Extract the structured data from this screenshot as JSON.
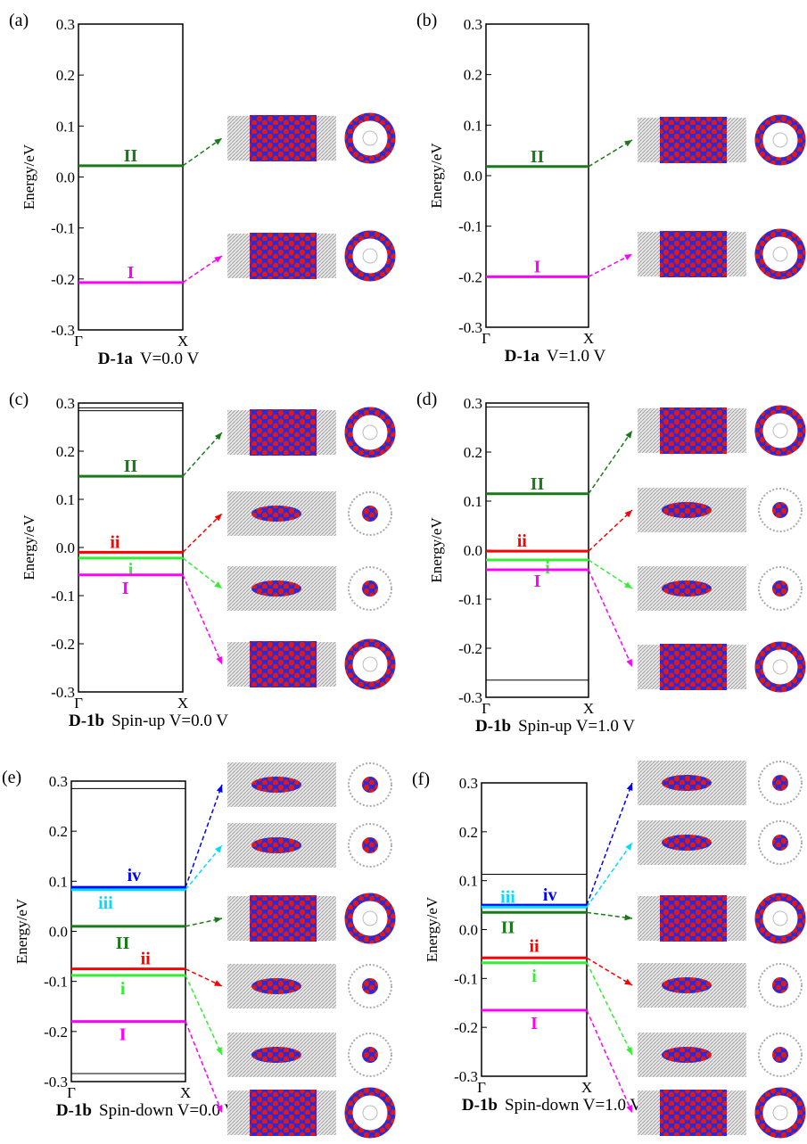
{
  "chart_data": [
    {
      "type": "band",
      "panel_label": "(a)",
      "y_label": "Energy/eV",
      "caption_label": "D-1a",
      "caption": "V=0.0 V",
      "categories": [
        "Γ",
        "X"
      ],
      "ylim": [
        -0.3,
        0.3
      ],
      "yticks": [
        -0.3,
        -0.2,
        -0.1,
        {
          "value": 0,
          "label": "0.0"
        },
        0.1,
        0.2,
        0.3
      ],
      "series": [
        {
          "name": "II",
          "color": "#1a7a1a",
          "values": [
            0.022,
            0.022
          ]
        },
        {
          "name": "I",
          "color": "#ff00ff",
          "values": [
            -0.207,
            -0.207
          ]
        }
      ]
    },
    {
      "type": "band",
      "panel_label": "(b)",
      "y_label": "Energy/eV",
      "caption_label": "D-1a",
      "caption": "V=1.0 V",
      "categories": [
        "Γ",
        "X"
      ],
      "ylim": [
        -0.3,
        0.3
      ],
      "yticks": [
        -0.3,
        -0.2,
        -0.1,
        {
          "value": 0,
          "label": "0.0"
        },
        0.1,
        0.2,
        0.3
      ],
      "series": [
        {
          "name": "II",
          "color": "#1a7a1a",
          "values": [
            0.018,
            0.018
          ]
        },
        {
          "name": "I",
          "color": "#ff00ff",
          "values": [
            -0.2,
            -0.2
          ]
        }
      ]
    },
    {
      "type": "band",
      "panel_label": "(c)",
      "y_label": "Energy/eV",
      "caption_label": "D-1b",
      "caption": "Spin-up  V=0.0 V",
      "categories": [
        "Γ",
        "X"
      ],
      "ylim": [
        -0.3,
        0.3
      ],
      "yticks": [
        -0.3,
        -0.2,
        -0.1,
        {
          "value": 0,
          "label": "0.0"
        },
        0.1,
        0.2,
        0.3
      ],
      "series": [
        {
          "color": "#000000",
          "values": [
            0.29,
            0.29
          ]
        },
        {
          "color": "#000000",
          "values": [
            0.284,
            0.284
          ]
        },
        {
          "name": "II",
          "color": "#1a7a1a",
          "values": [
            0.148,
            0.148
          ]
        },
        {
          "name": "ii",
          "color": "#ff0000",
          "values": [
            -0.01,
            -0.01
          ]
        },
        {
          "name": "i",
          "color": "#33ee33",
          "values": [
            -0.022,
            -0.022
          ]
        },
        {
          "name": "I",
          "color": "#ff00ff",
          "values": [
            -0.057,
            -0.057
          ]
        }
      ]
    },
    {
      "type": "band",
      "panel_label": "(d)",
      "y_label": "Energy/eV",
      "caption_label": "D-1b",
      "caption": "Spin-up  V=1.0 V",
      "categories": [
        "Γ",
        "X"
      ],
      "ylim": [
        -0.3,
        0.3
      ],
      "yticks": [
        -0.3,
        -0.2,
        -0.1,
        {
          "value": 0,
          "label": "0.0"
        },
        0.1,
        0.2,
        0.3
      ],
      "series": [
        {
          "color": "#000000",
          "values": [
            0.292,
            0.292
          ]
        },
        {
          "color": "#000000",
          "values": [
            -0.265,
            -0.265
          ]
        },
        {
          "name": "II",
          "color": "#1a7a1a",
          "values": [
            0.115,
            0.115
          ]
        },
        {
          "name": "ii",
          "color": "#ff0000",
          "values": [
            -0.002,
            -0.002
          ]
        },
        {
          "name": "i",
          "color": "#33ee33",
          "values": [
            -0.02,
            -0.02
          ]
        },
        {
          "name": "I",
          "color": "#ff00ff",
          "values": [
            -0.04,
            -0.04
          ]
        }
      ]
    },
    {
      "type": "band",
      "panel_label": "(e)",
      "y_label": "Energy/eV",
      "caption_label": "D-1b",
      "caption": "Spin-down  V=0.0 V",
      "categories": [
        "Γ",
        "X"
      ],
      "ylim": [
        -0.3,
        0.3
      ],
      "yticks": [
        -0.3,
        -0.2,
        -0.1,
        {
          "value": 0,
          "label": "0.0"
        },
        0.1,
        0.2,
        0.3
      ],
      "series": [
        {
          "color": "#000000",
          "values": [
            0.285,
            0.285
          ]
        },
        {
          "color": "#000000",
          "values": [
            -0.284,
            -0.284
          ]
        },
        {
          "name": "iv",
          "color": "#0000ff",
          "values": [
            0.088,
            0.088
          ]
        },
        {
          "name": "iii",
          "color": "#00ddff",
          "values": [
            0.083,
            0.083
          ]
        },
        {
          "name": "II",
          "color": "#1a7a1a",
          "values": [
            0.01,
            0.01
          ]
        },
        {
          "name": "ii",
          "color": "#ff0000",
          "values": [
            -0.075,
            -0.075
          ]
        },
        {
          "name": "i",
          "color": "#33ee33",
          "values": [
            -0.088,
            -0.088
          ]
        },
        {
          "name": "I",
          "color": "#ff00ff",
          "values": [
            -0.18,
            -0.18
          ]
        }
      ]
    },
    {
      "type": "band",
      "panel_label": "(f)",
      "y_label": "Energy/eV",
      "caption_label": "D-1b",
      "caption": "Spin-down  V=1.0 V",
      "categories": [
        "Γ",
        "X"
      ],
      "ylim": [
        -0.3,
        0.3
      ],
      "yticks": [
        -0.3,
        -0.2,
        -0.1,
        {
          "value": 0,
          "label": "0.0"
        },
        0.1,
        0.2,
        0.3
      ],
      "series": [
        {
          "color": "#000000",
          "values": [
            0.113,
            0.113
          ]
        },
        {
          "name": "iv",
          "color": "#0000ff",
          "values": [
            0.05,
            0.05
          ]
        },
        {
          "name": "iii",
          "color": "#00ddff",
          "values": [
            0.046,
            0.046
          ]
        },
        {
          "name": "II",
          "color": "#1a7a1a",
          "values": [
            0.035,
            0.035
          ]
        },
        {
          "name": "ii",
          "color": "#ff0000",
          "values": [
            -0.058,
            -0.058
          ]
        },
        {
          "name": "i",
          "color": "#33ee33",
          "values": [
            -0.068,
            -0.068
          ]
        },
        {
          "name": "I",
          "color": "#ff00ff",
          "values": [
            -0.165,
            -0.165
          ]
        }
      ]
    }
  ]
}
